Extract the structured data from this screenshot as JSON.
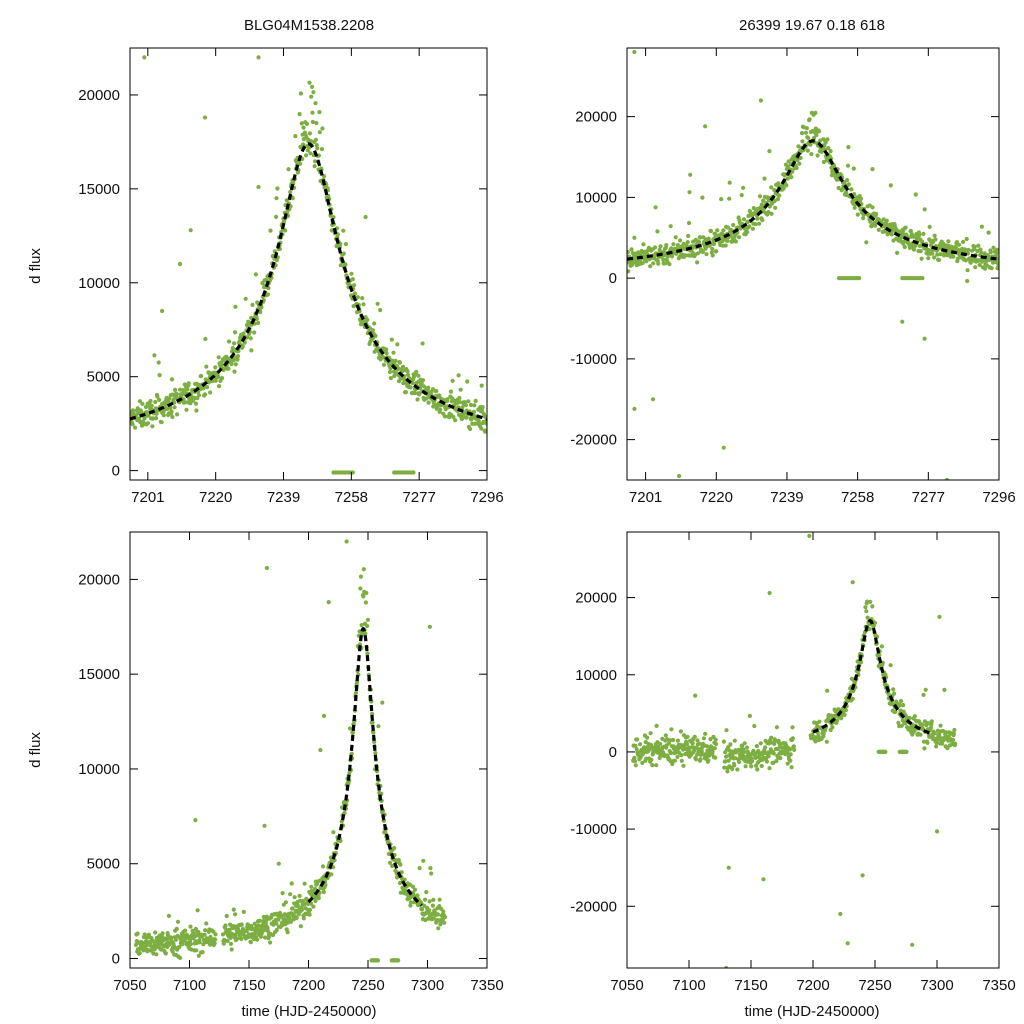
{
  "figure": {
    "title_left": "BLG04M1538.2208",
    "title_right": "26399  19.67  0.18  618",
    "ylabel": "d flux",
    "xlabel": "time (HJD-2450000)",
    "data_color": "#7cae42",
    "model_color": "#000000"
  },
  "chart_data": [
    {
      "type": "scatter",
      "panel": "top-left",
      "title": "BLG04M1538.2208",
      "xlabel": "",
      "ylabel": "d flux",
      "xlim": [
        7196,
        7296
      ],
      "ylim": [
        -500,
        22500
      ],
      "xticks": [
        7201,
        7220,
        7239,
        7258,
        7277,
        7296
      ],
      "yticks": [
        0,
        5000,
        10000,
        15000,
        20000
      ],
      "model": {
        "t0": 7246,
        "peak": 17400,
        "tE": 8.0
      },
      "series": [
        {
          "name": "data",
          "kind": "scatter"
        },
        {
          "name": "model",
          "kind": "dashed-line"
        }
      ],
      "outliers": [
        [
          7200,
          22000
        ],
        [
          7217,
          18800
        ],
        [
          7213,
          12800
        ],
        [
          7210,
          11000
        ],
        [
          7232,
          22000
        ],
        [
          7232,
          15100
        ],
        [
          7262,
          13500
        ],
        [
          7205,
          8500
        ],
        [
          7230,
          6400
        ]
      ]
    },
    {
      "type": "scatter",
      "panel": "top-right",
      "title": "26399  19.67  0.18  618",
      "xlabel": "",
      "ylabel": "",
      "xlim": [
        7196,
        7296
      ],
      "ylim": [
        -25000,
        28500
      ],
      "xticks": [
        7201,
        7220,
        7239,
        7258,
        7277,
        7296
      ],
      "yticks": [
        -20000,
        -10000,
        0,
        10000,
        20000
      ],
      "model": {
        "t0": 7246,
        "peak": 17400,
        "tE": 8.0
      },
      "series": [
        {
          "name": "data",
          "kind": "scatter"
        },
        {
          "name": "model",
          "kind": "dashed-line"
        }
      ],
      "outliers": [
        [
          7198,
          28000
        ],
        [
          7198,
          -16200
        ],
        [
          7203,
          -15000
        ],
        [
          7222,
          -21000
        ],
        [
          7232,
          22000
        ],
        [
          7217,
          18800
        ],
        [
          7262,
          13500
        ],
        [
          7198,
          5000
        ],
        [
          7213,
          12800
        ],
        [
          7210,
          -24500
        ],
        [
          7282,
          -25000
        ],
        [
          7276,
          -7500
        ],
        [
          7270,
          -5400
        ]
      ]
    },
    {
      "type": "scatter",
      "panel": "bottom-left",
      "title": "",
      "xlabel": "time (HJD-2450000)",
      "ylabel": "d flux",
      "xlim": [
        7050,
        7350
      ],
      "ylim": [
        -500,
        22500
      ],
      "xticks": [
        7050,
        7100,
        7150,
        7200,
        7250,
        7300,
        7350
      ],
      "yticks": [
        0,
        5000,
        10000,
        15000,
        20000
      ],
      "model": {
        "t0": 7246,
        "peak": 17400,
        "tE": 8.0
      },
      "series": [
        {
          "name": "data",
          "kind": "scatter"
        },
        {
          "name": "model",
          "kind": "dashed-line"
        }
      ],
      "outliers": [
        [
          7232,
          22000
        ],
        [
          7217,
          18800
        ],
        [
          7165,
          20600
        ],
        [
          7105,
          7300
        ],
        [
          7163,
          7000
        ],
        [
          7302,
          17500
        ],
        [
          7262,
          13500
        ],
        [
          7210,
          11000
        ],
        [
          7213,
          12800
        ],
        [
          7175,
          5000
        ]
      ]
    },
    {
      "type": "scatter",
      "panel": "bottom-right",
      "title": "",
      "xlabel": "time (HJD-2450000)",
      "ylabel": "",
      "xlim": [
        7050,
        7350
      ],
      "ylim": [
        -28000,
        28500
      ],
      "xticks": [
        7050,
        7100,
        7150,
        7200,
        7250,
        7300,
        7350
      ],
      "yticks": [
        -20000,
        -10000,
        0,
        10000,
        20000
      ],
      "model": {
        "t0": 7246,
        "peak": 17400,
        "tE": 8.0
      },
      "series": [
        {
          "name": "data",
          "kind": "scatter"
        },
        {
          "name": "model",
          "kind": "dashed-line"
        }
      ],
      "outliers": [
        [
          7197,
          28000
        ],
        [
          7232,
          22000
        ],
        [
          7165,
          20600
        ],
        [
          7302,
          17500
        ],
        [
          7105,
          7300
        ],
        [
          7130,
          -28000
        ],
        [
          7222,
          -21000
        ],
        [
          7228,
          -24800
        ],
        [
          7280,
          -25000
        ],
        [
          7160,
          -16500
        ],
        [
          7300,
          -10300
        ],
        [
          7240,
          -16000
        ],
        [
          7132,
          -15000
        ]
      ]
    }
  ]
}
